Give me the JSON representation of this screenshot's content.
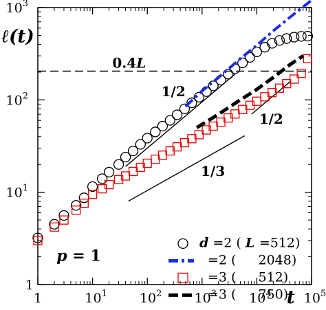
{
  "chart_data": {
    "type": "scatter",
    "xlabel": "t",
    "ylabel": "ℓ(t)",
    "x_scale": "log",
    "y_scale": "log",
    "xlim": [
      1,
      100000
    ],
    "ylim": [
      1,
      1000
    ],
    "x_ticks": [
      {
        "value": 1,
        "base": "1",
        "exp": ""
      },
      {
        "value": 10,
        "base": "10",
        "exp": "1"
      },
      {
        "value": 100,
        "base": "10",
        "exp": "2"
      },
      {
        "value": 1000,
        "base": "10",
        "exp": "3"
      },
      {
        "value": 10000,
        "base": "10",
        "exp": "4"
      },
      {
        "value": 100000,
        "base": "10",
        "exp": "5"
      }
    ],
    "y_ticks": [
      {
        "value": 1,
        "base": "1",
        "exp": ""
      },
      {
        "value": 10,
        "base": "10",
        "exp": "1"
      },
      {
        "value": 100,
        "base": "10",
        "exp": "2"
      },
      {
        "value": 1000,
        "base": "10",
        "exp": "3"
      }
    ],
    "reference_line": {
      "label": "0.4L",
      "y": 204.8
    },
    "slope_annotations": [
      {
        "label": "1/2",
        "slope": 0.5,
        "x": [
          40,
          4000
        ],
        "y_start": 19
      },
      {
        "label": "1/3",
        "slope": 0.3333,
        "x": [
          45,
          6000
        ],
        "y_start": 8
      },
      {
        "label": "1/2",
        "slope": 0.5,
        "x": [
          8000,
          40000
        ],
        "y_start": 70
      }
    ],
    "series": [
      {
        "legend_prefix": "d",
        "legend_label": " =2 (",
        "legend_L": "L",
        "legend_value": "=512)",
        "marker": "circle",
        "color": "#000000",
        "x": [
          1,
          2,
          3,
          5,
          7,
          10,
          15,
          20,
          30,
          40,
          55,
          75,
          100,
          140,
          190,
          260,
          350,
          480,
          650,
          880,
          1200,
          1600,
          2200,
          3000,
          4000,
          5500,
          7500,
          10000,
          14000,
          19000,
          26000,
          35000,
          48000,
          65000,
          85000
        ],
        "y": [
          3.2,
          4.5,
          5.6,
          7.2,
          8.7,
          11.5,
          14,
          16.5,
          20,
          24,
          28,
          33,
          38.5,
          45,
          52,
          60,
          69,
          80,
          93,
          107,
          123,
          142,
          164,
          190,
          218,
          252,
          289,
          331,
          372,
          410,
          440,
          462,
          478,
          488,
          490
        ]
      },
      {
        "legend_label": "=2 (",
        "legend_value": "2048)",
        "marker": "dash-dot",
        "color": "#1a2ee0",
        "x": [
          500,
          1000,
          2000,
          5000,
          10000,
          20000,
          50000,
          100000
        ],
        "y": [
          85,
          125,
          175,
          280,
          390,
          560,
          870,
          1200
        ]
      },
      {
        "legend_label": "=3 (",
        "legend_value": "512)",
        "marker": "square",
        "color": "#e00000",
        "x": [
          1,
          2,
          3,
          5,
          7,
          10,
          15,
          20,
          30,
          40,
          55,
          75,
          100,
          140,
          190,
          260,
          350,
          480,
          650,
          880,
          1200,
          1600,
          2200,
          3000,
          4000,
          5500,
          7500,
          10000,
          14000,
          19000,
          26000,
          35000,
          48000,
          65000,
          85000
        ],
        "y": [
          3.0,
          4.2,
          5.0,
          6.4,
          7.6,
          9.5,
          10.9,
          12.1,
          13.7,
          15,
          16.8,
          18.6,
          20.6,
          22.8,
          25.2,
          28,
          31,
          34.4,
          38,
          42,
          47.3,
          52,
          57.4,
          63.8,
          70.4,
          78.8,
          87.4,
          96.8,
          108,
          120,
          134,
          150,
          168,
          194,
          280
        ]
      },
      {
        "legend_label": "=3 (",
        "legend_value": "750)",
        "marker": "dash",
        "color": "#000000",
        "x": [
          800,
          2000,
          5000,
          10000,
          20000,
          40000,
          70000
        ],
        "y": [
          50,
          70,
          100,
          130,
          175,
          240,
          300
        ]
      }
    ],
    "annotation_p": {
      "symbol": "p",
      "value": " = 1"
    },
    "grid": false,
    "legend_position": "bottom-right"
  }
}
